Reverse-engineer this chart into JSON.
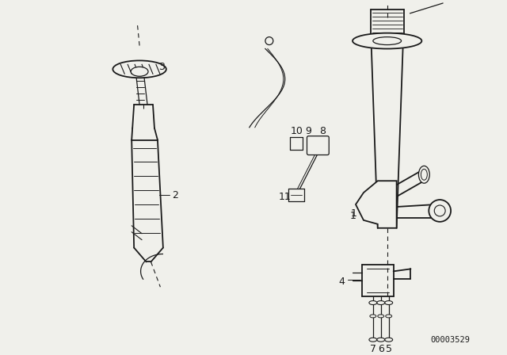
{
  "bg_color": "#f0f0eb",
  "line_color": "#1a1a1a",
  "label_color": "#1a1a1a",
  "part_number_text": "00003529",
  "figsize": [
    6.4,
    4.48
  ],
  "dpi": 100
}
